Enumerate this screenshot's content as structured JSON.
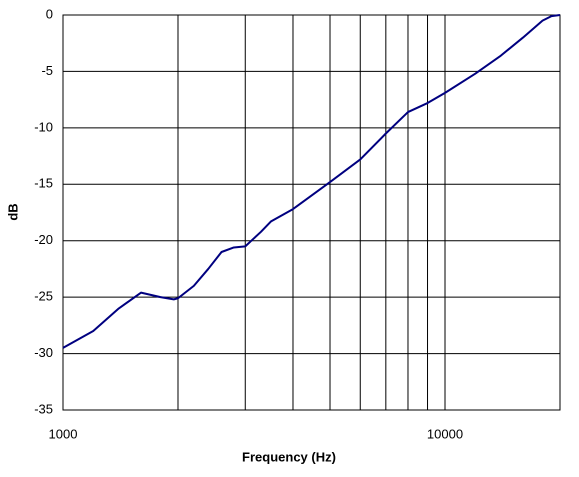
{
  "chart_data": {
    "type": "line",
    "xlabel": "Frequency (Hz)",
    "ylabel": "dB",
    "x": [
      1000,
      1200,
      1400,
      1600,
      1800,
      1950,
      2000,
      2200,
      2400,
      2600,
      2800,
      3000,
      3300,
      3500,
      4000,
      5000,
      6000,
      7000,
      8000,
      9000,
      10000,
      12000,
      14000,
      16000,
      18000,
      19000,
      20000
    ],
    "series": [
      {
        "color": "#000080",
        "values": [
          -29.5,
          -28,
          -26,
          -24.6,
          -25,
          -25.2,
          -25.1,
          -24,
          -22.5,
          -21,
          -20.6,
          -20.5,
          -19.2,
          -18.3,
          -17.2,
          -14.8,
          -12.8,
          -10.5,
          -8.6,
          -7.8,
          -6.9,
          -5.2,
          -3.6,
          -2.0,
          -0.5,
          -0.1,
          0
        ]
      }
    ],
    "xlim": [
      1000,
      20000
    ],
    "xscale": "log",
    "xticks": [
      1000,
      10000
    ],
    "x_minor_grid": [
      2000,
      3000,
      4000,
      5000,
      6000,
      7000,
      8000,
      9000
    ],
    "ylim": [
      -35,
      0
    ],
    "yticks": [
      -35,
      -30,
      -25,
      -20,
      -15,
      -10,
      -5,
      0
    ],
    "grid": true
  }
}
